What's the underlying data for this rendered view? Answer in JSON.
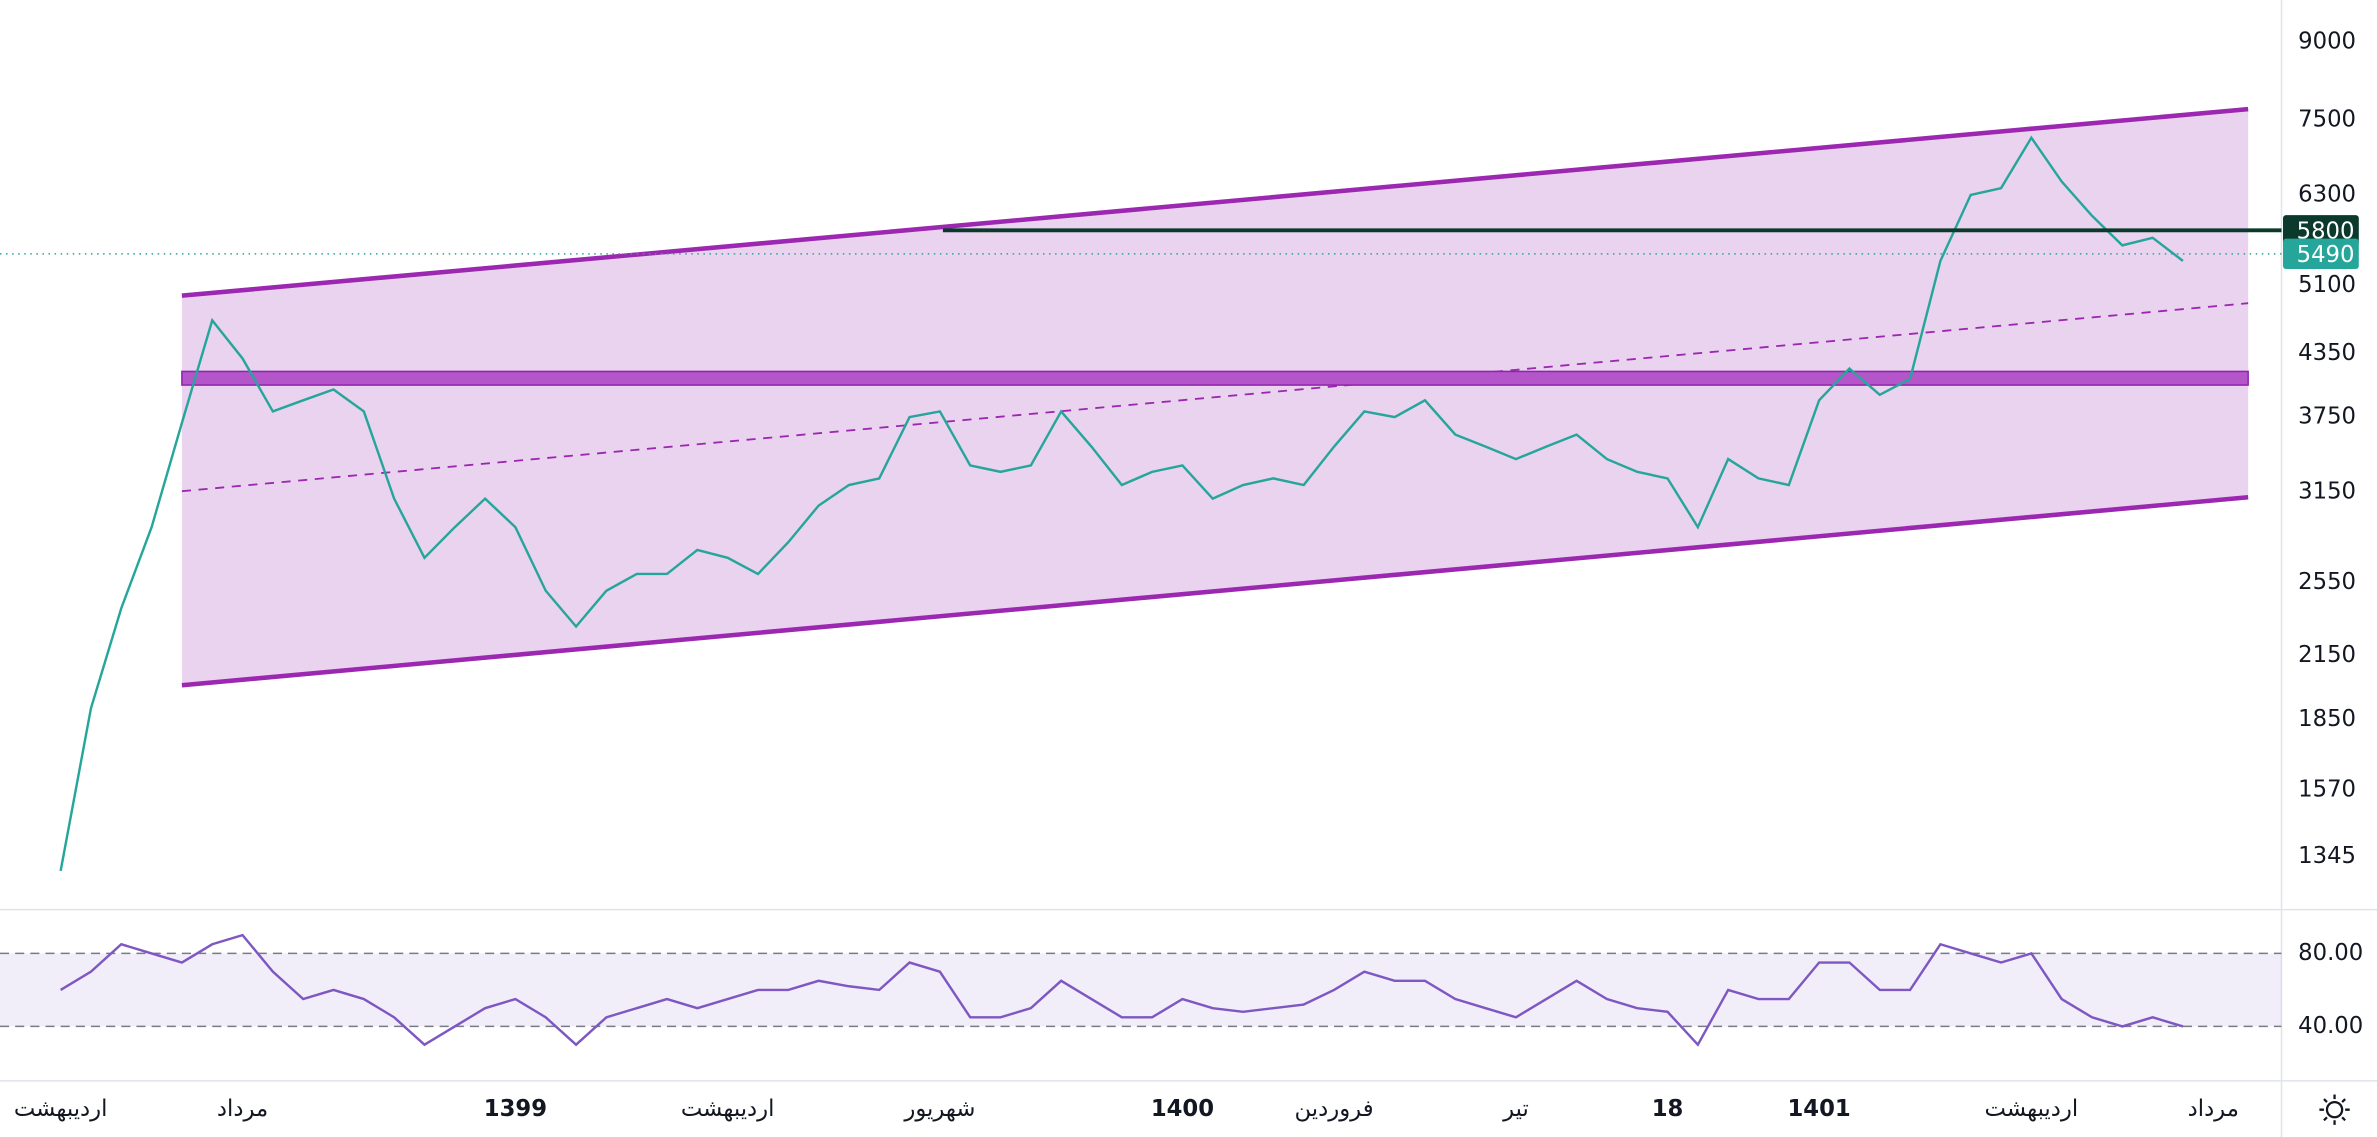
{
  "chart_data": [
    {
      "type": "line",
      "scale": "log",
      "categories": [
        "اردیبهشت",
        null,
        null,
        null,
        null,
        null,
        "مرداد",
        null,
        null,
        null,
        null,
        null,
        null,
        null,
        null,
        "1399",
        null,
        null,
        null,
        null,
        null,
        null,
        "اردیبهشت",
        null,
        null,
        null,
        null,
        null,
        null,
        "شهریور",
        null,
        null,
        null,
        null,
        null,
        null,
        null,
        "1400",
        null,
        null,
        null,
        null,
        "فروردین",
        null,
        null,
        null,
        null,
        null,
        "تیر",
        null,
        null,
        null,
        null,
        "18",
        null,
        null,
        null,
        null,
        "1401",
        null,
        null,
        null,
        null,
        null,
        null,
        "اردیبهشت",
        null,
        null,
        null,
        null,
        null,
        "مرداد"
      ],
      "series": [
        {
          "color": "#26a69a",
          "values": [
            1300,
            1900,
            2400,
            2900,
            3700,
            4700,
            4300,
            3800,
            3900,
            4000,
            3800,
            3100,
            2700,
            2900,
            3100,
            2900,
            2500,
            2300,
            2500,
            2600,
            2600,
            2750,
            2700,
            2600,
            2800,
            3050,
            3200,
            3250,
            3750,
            3800,
            3350,
            3300,
            3350,
            3800,
            3500,
            3200,
            3300,
            3350,
            3100,
            3200,
            3250,
            3200,
            3500,
            3800,
            3750,
            3900,
            3600,
            3500,
            3400,
            3500,
            3600,
            3400,
            3300,
            3250,
            2900,
            3400,
            3250,
            3200,
            3900,
            4200,
            3950,
            4100,
            5400,
            6300,
            6400,
            7200,
            6500,
            6000,
            5600,
            5700,
            5400,
            null
          ]
        }
      ],
      "ylim": [
        1196,
        9930
      ],
      "yticks": [
        9000,
        7500,
        6300,
        5100,
        4350,
        3750,
        3150,
        2550,
        2150,
        1850,
        1570,
        1345
      ],
      "price_labels": [
        {
          "value": 5800,
          "color": "#0b3a2c"
        },
        {
          "value": 5490,
          "color": "#26a69a"
        }
      ]
    },
    {
      "type": "line",
      "series": [
        {
          "color": "#7e57c2",
          "values": [
            60,
            70,
            85,
            80,
            75,
            85,
            90,
            70,
            55,
            60,
            55,
            45,
            30,
            40,
            50,
            55,
            45,
            30,
            45,
            50,
            55,
            50,
            55,
            60,
            60,
            65,
            62,
            60,
            75,
            70,
            45,
            45,
            50,
            65,
            55,
            45,
            45,
            55,
            50,
            48,
            50,
            52,
            60,
            70,
            65,
            65,
            55,
            50,
            45,
            55,
            65,
            55,
            50,
            48,
            30,
            60,
            55,
            55,
            75,
            75,
            60,
            60,
            85,
            80,
            75,
            80,
            55,
            45,
            40,
            45,
            40,
            null
          ]
        }
      ],
      "ylim": [
        11,
        104
      ],
      "yticks": [
        {
          "value": 80,
          "label": "80.00"
        },
        {
          "value": 40,
          "label": "40.00"
        }
      ]
    }
  ]
}
